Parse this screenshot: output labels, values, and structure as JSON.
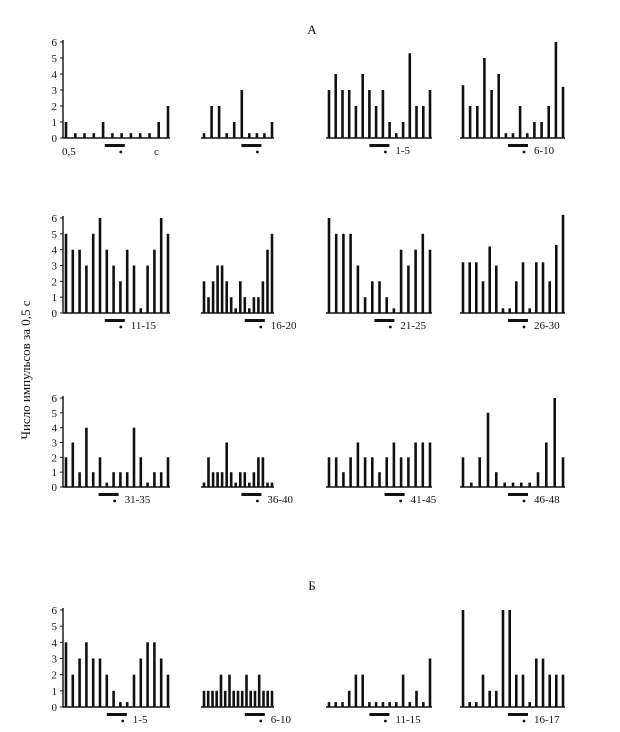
{
  "section_labels": [
    "А",
    "Б"
  ],
  "y_axis_label": "Число импульсов за 0,5 с",
  "y_ticks": [
    "0",
    "1",
    "2",
    "3",
    "4",
    "5",
    "6"
  ],
  "x_scale_value": "0,5",
  "x_scale_unit": "с",
  "chart_data": [
    {
      "type": "bar",
      "section": "А",
      "trials": "",
      "ylim": [
        0,
        6
      ],
      "values": [
        1,
        0.3,
        0.3,
        0.3,
        1,
        0.3,
        0.3,
        0.3,
        0.3,
        0.3,
        1,
        2
      ]
    },
    {
      "type": "bar",
      "section": "А",
      "trials": "",
      "ylim": [
        0,
        6
      ],
      "values": [
        0.3,
        2,
        2,
        0.3,
        1,
        3,
        0.3,
        0.3,
        0.3,
        1
      ]
    },
    {
      "type": "bar",
      "section": "А",
      "trials": "1-5",
      "ylim": [
        0,
        6
      ],
      "values": [
        3,
        4,
        3,
        3,
        2,
        4,
        3,
        2,
        3,
        1,
        0.3,
        1,
        5.3,
        2,
        2,
        3
      ]
    },
    {
      "type": "bar",
      "section": "А",
      "trials": "6-10",
      "ylim": [
        0,
        6
      ],
      "values": [
        3.3,
        2,
        2,
        5,
        3,
        4,
        0.3,
        0.3,
        2,
        0.3,
        1,
        1,
        2,
        6,
        3.2
      ]
    },
    {
      "type": "bar",
      "section": "А",
      "trials": "11-15",
      "ylim": [
        0,
        6
      ],
      "values": [
        5,
        4,
        4,
        3,
        5,
        6,
        4,
        3,
        2,
        4,
        3,
        0.3,
        3,
        4,
        6,
        5
      ]
    },
    {
      "type": "bar",
      "section": "А",
      "trials": "16-20",
      "ylim": [
        0,
        6
      ],
      "values": [
        2,
        1,
        2,
        3,
        3,
        2,
        1,
        0.3,
        2,
        1,
        0.3,
        1,
        1,
        2,
        4,
        5
      ]
    },
    {
      "type": "bar",
      "section": "А",
      "trials": "21-25",
      "ylim": [
        0,
        6
      ],
      "values": [
        6,
        5,
        5,
        5,
        3,
        1,
        2,
        2,
        1,
        0.3,
        4,
        3,
        4,
        5,
        4
      ]
    },
    {
      "type": "bar",
      "section": "А",
      "trials": "26-30",
      "ylim": [
        0,
        6
      ],
      "values": [
        3.2,
        3.2,
        3.2,
        2,
        4.2,
        3,
        0.3,
        0.3,
        2,
        3.2,
        0.3,
        3.2,
        3.2,
        2,
        4.3,
        6.2
      ]
    },
    {
      "type": "bar",
      "section": "А",
      "trials": "31-35",
      "ylim": [
        0,
        6
      ],
      "values": [
        2,
        3,
        1,
        4,
        1,
        2,
        0.3,
        1,
        1,
        1,
        4,
        2,
        0.3,
        1,
        1,
        2
      ]
    },
    {
      "type": "bar",
      "section": "А",
      "trials": "36-40",
      "ylim": [
        0,
        6
      ],
      "values": [
        0.3,
        2,
        1,
        1,
        1,
        3,
        1,
        0.3,
        1,
        1,
        0.3,
        1,
        2,
        2,
        0.3,
        0.3
      ]
    },
    {
      "type": "bar",
      "section": "А",
      "trials": "41-45",
      "ylim": [
        0,
        6
      ],
      "values": [
        2,
        2,
        1,
        2,
        3,
        2,
        2,
        1,
        2,
        3,
        2,
        2,
        3,
        3,
        3
      ]
    },
    {
      "type": "bar",
      "section": "А",
      "trials": "46-48",
      "ylim": [
        0,
        6
      ],
      "values": [
        2,
        0.3,
        2,
        5,
        1,
        0.3,
        0.3,
        0.3,
        0.3,
        1,
        3,
        6,
        2
      ]
    },
    {
      "type": "bar",
      "section": "Б",
      "trials": "1-5",
      "ylim": [
        0,
        6
      ],
      "values": [
        4,
        2,
        3,
        4,
        3,
        3,
        2,
        1,
        0.3,
        0.3,
        2,
        3,
        4,
        4,
        3,
        2
      ]
    },
    {
      "type": "bar",
      "section": "Б",
      "trials": "6-10",
      "ylim": [
        0,
        6
      ],
      "values": [
        1,
        1,
        1,
        1,
        2,
        1,
        2,
        1,
        1,
        1,
        2,
        1,
        1,
        2,
        1,
        1,
        1
      ]
    },
    {
      "type": "bar",
      "section": "Б",
      "trials": "11-15",
      "ylim": [
        0,
        6
      ],
      "values": [
        0.3,
        0.3,
        0.3,
        1,
        2,
        2,
        0.3,
        0.3,
        0.3,
        0.3,
        0.3,
        2,
        0.3,
        1,
        0.3,
        3
      ]
    },
    {
      "type": "bar",
      "section": "Б",
      "trials": "16-17",
      "ylim": [
        0,
        6
      ],
      "values": [
        6,
        0.3,
        0.3,
        2,
        1,
        1,
        6,
        6,
        2,
        2,
        0.3,
        3,
        3,
        2,
        2,
        2
      ]
    }
  ]
}
